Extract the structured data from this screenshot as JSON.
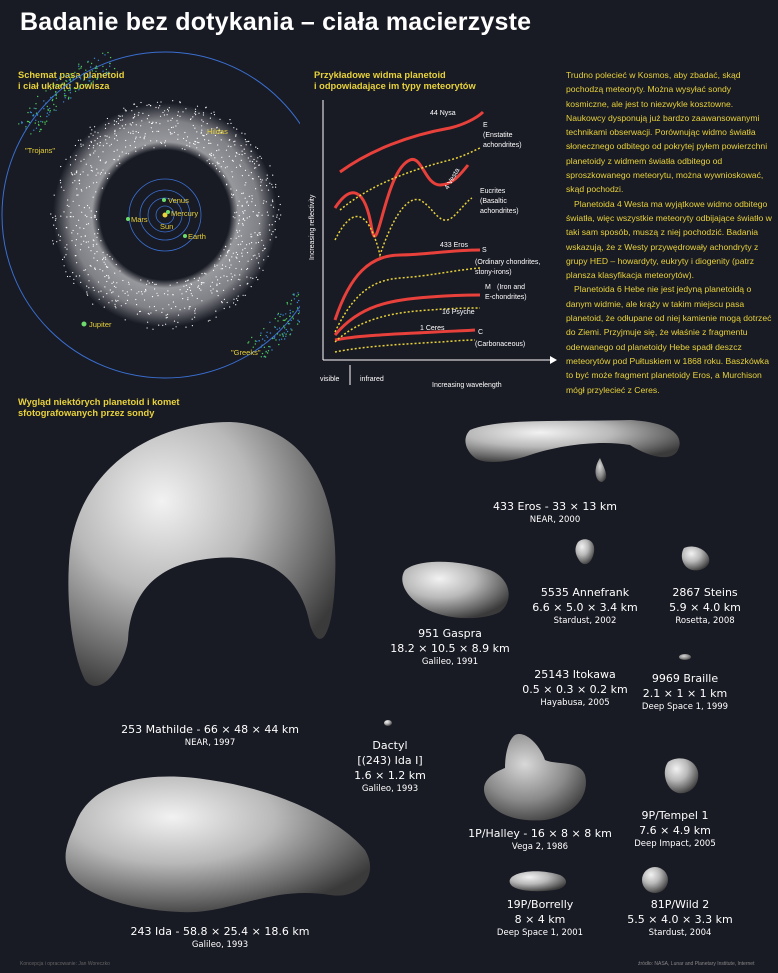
{
  "title": "Badanie bez dotykania – ciała macierzyste",
  "belt": {
    "heading_1": "Schemat pasa planetoid",
    "heading_2": "i ciał układu Jowisza",
    "labels": {
      "trojans": "\"Trojans\"",
      "hildas": "Hildas",
      "venus": "Venus",
      "mercury": "Mercury",
      "mars": "Mars",
      "sun": "Sun",
      "earth": "Earth",
      "jupiter": "Jupiter",
      "greeks": "\"Greeks\""
    }
  },
  "spectra": {
    "heading_1": "Przykładowe widma planetoid",
    "heading_2": "i odpowiadające im typy meteorytów",
    "y_axis": "Increasing reflectivity",
    "x_axis": "Increasing wavelength",
    "visible": "visible",
    "infrared": "infrared",
    "labels": {
      "nysa": "44 Nysa",
      "e_type": "E",
      "e_1": "(Enstatite",
      "e_2": "achondrites)",
      "vesta": "4 Vesta",
      "eucrites_1": "Eucrites",
      "eucrites_2": "(Basaltic",
      "eucrites_3": "achondrites)",
      "eros": "433 Eros",
      "s_type": "S",
      "s_1": "(Ordinary chondrites,",
      "s_2": "stony-irons)",
      "m_type": "M",
      "m_1": "(Iron and",
      "m_2": "E-chondrites)",
      "psyche": "16 Psyche",
      "ceres": "1 Ceres",
      "c_type": "C",
      "c_1": "(Carbonaceous)"
    },
    "colors": {
      "asteroid": "#e8403a",
      "meteorite": "#e8d23a"
    }
  },
  "body_paragraphs": [
    "Trudno polecieć w Kosmos, aby zbadać, skąd pochodzą meteoryty. Można wysyłać sondy kosmiczne, ale jest to niezwykle kosztowne. Naukowcy dysponują już bardzo zaawansowanymi technikami obserwacji. Porównując widmo światła słonecznego odbitego od pokrytej pyłem powierzchni planetoidy z widmem światła odbitego od sproszkowanego meteorytu, można wywnioskować, skąd pochodzi.",
    "Planetoida 4 Westa ma wyjątkowe widmo odbitego światła, więc wszystkie meteoryty odbijające światło w taki sam sposób, muszą z niej pochodzić. Badania wskazują, że z Westy przywędrowały achondryty z grupy HED – howardyty, eukryty i diogenity (patrz plansza klasyfikacja meteorytów).",
    "Planetoida 6 Hebe nie jest jedyną planetoidą o danym widmie, ale krąży w takim miejscu pasa planetoid, że odłupane od niej kamienie mogą dotrzeć do Ziemi. Przyjmuje się, że właśnie z fragmentu oderwanego od planetoidy Hebe spadł deszcz meteorytów pod Pułtuskiem w 1868 roku. Baszkówka to być może fragment planetoidy Eros, a Murchison mógł przylecieć z Ceres."
  ],
  "gallery_heading_1": "Wygląd niektórych planetoid i komet",
  "gallery_heading_2": "sfotografowanych przez sondy",
  "bodies": {
    "mathilde": {
      "name": "253 Mathilde - 66 × 48 × 44 km",
      "mission": "NEAR, 1997"
    },
    "ida": {
      "name": "243 Ida - 58.8 × 25.4 × 18.6 km",
      "mission": "Galileo, 1993"
    },
    "eros": {
      "name": "433 Eros - 33 × 13 km",
      "mission": "NEAR, 2000"
    },
    "gaspra": {
      "name": "951 Gaspra",
      "dims": "18.2 × 10.5 × 8.9 km",
      "mission": "Galileo, 1991"
    },
    "annefrank": {
      "name": "5535 Annefrank",
      "dims": "6.6 × 5.0 × 3.4 km",
      "mission": "Stardust, 2002"
    },
    "steins": {
      "name": "2867 Steins",
      "dims": "5.9 × 4.0 km",
      "mission": "Rosetta, 2008"
    },
    "itokawa": {
      "name": "25143 Itokawa",
      "dims": "0.5 × 0.3 × 0.2 km",
      "mission": "Hayabusa, 2005"
    },
    "braille": {
      "name": "9969 Braille",
      "dims": "2.1 × 1 × 1 km",
      "mission": "Deep Space 1, 1999"
    },
    "dactyl": {
      "name": "Dactyl",
      "sub": "[(243) Ida I]",
      "dims": "1.6 × 1.2 km",
      "mission": "Galileo, 1993"
    },
    "halley": {
      "name": "1P/Halley - 16 × 8 × 8 km",
      "mission": "Vega 2, 1986"
    },
    "tempel": {
      "name": "9P/Tempel 1",
      "dims": "7.6 × 4.9 km",
      "mission": "Deep Impact, 2005"
    },
    "borrelly": {
      "name": "19P/Borrelly",
      "dims": "8 × 4 km",
      "mission": "Deep Space 1, 2001"
    },
    "wild": {
      "name": "81P/Wild 2",
      "dims": "5.5 × 4.0 × 3.3 km",
      "mission": "Stardust, 2004"
    }
  },
  "footer_left": "Koncepcja i opracowanie: Jan Woreczko",
  "footer_right": "źródło: NASA, Lunar and Planetary Institute, Internet"
}
